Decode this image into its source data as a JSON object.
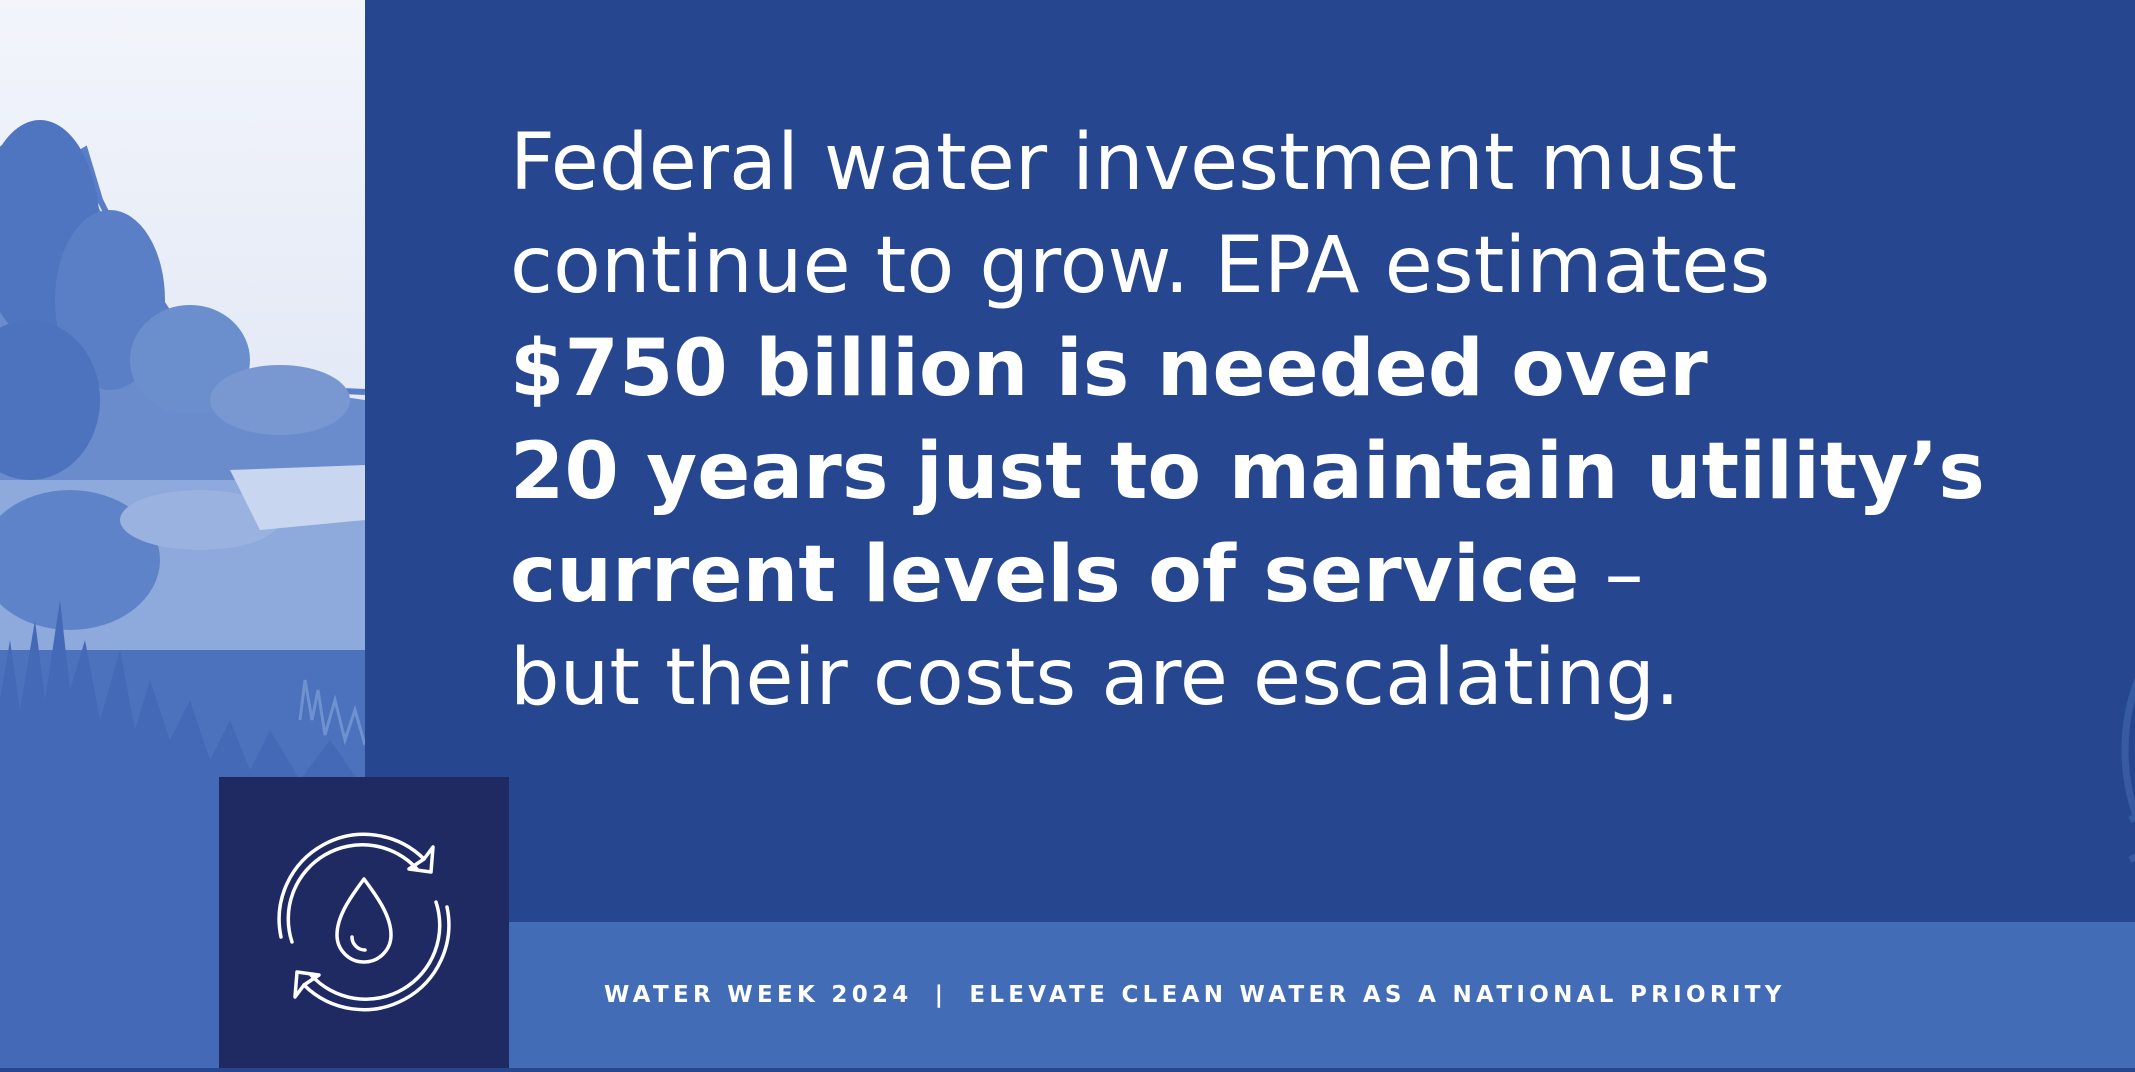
{
  "headline": {
    "line1": "Federal water investment must",
    "line2": "continue to grow. EPA estimates",
    "line3": "$750 billion is needed over",
    "line4": "20 years just to maintain utility’s",
    "line5_bold": "current levels of service",
    "line5_tail": " –",
    "line6": "but their costs are escalating."
  },
  "footer": {
    "event": "WATER WEEK 2024",
    "separator": "|",
    "tagline": "ELEVATE CLEAN WATER AS A NATIONAL PRIORITY"
  },
  "icons": {
    "cycle_icon": "water-drop-recycle-icon",
    "seal_icon": "capitol-water-seal-icon",
    "photo": "river-landscape-photo"
  },
  "colors": {
    "main_blue": "#26478f",
    "footer_blue": "#426db6",
    "icon_box_navy": "#1f2a63",
    "text": "#ffffff"
  }
}
